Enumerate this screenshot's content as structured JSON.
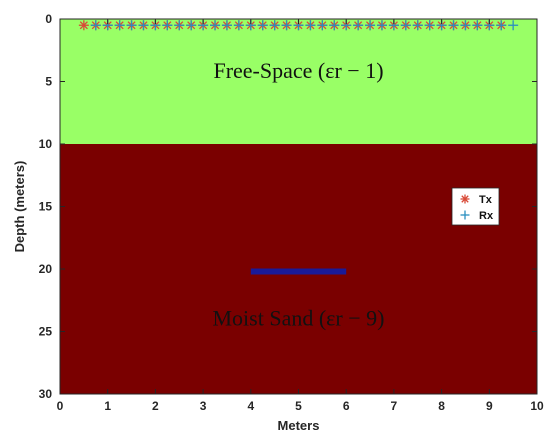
{
  "chart_data": {
    "type": "scatter",
    "xlabel": "Meters",
    "ylabel": "Depth (meters)",
    "xlim": [
      0,
      10
    ],
    "ylim": [
      0,
      30
    ],
    "y_axis_inverted": true,
    "xticks": [
      0,
      1,
      2,
      3,
      4,
      5,
      6,
      7,
      8,
      9,
      10
    ],
    "yticks": [
      0,
      5,
      10,
      15,
      20,
      25,
      30
    ],
    "grid": false,
    "legend_position": "right",
    "regions": [
      {
        "label": "Free-Space (εr − 1)",
        "depth_from": 0,
        "depth_to": 10,
        "color": "#99ff66"
      },
      {
        "label": "Moist Sand (εr − 9)",
        "depth_from": 10,
        "depth_to": 30,
        "color": "#7a0000"
      }
    ],
    "target": {
      "x_from": 4,
      "x_to": 6,
      "depth": 20.2,
      "color": "#1a1a99"
    },
    "series": [
      {
        "name": "Tx",
        "marker": "*",
        "color": "#d94a38",
        "points": [
          [
            0.5,
            0.5
          ],
          [
            0.75,
            0.5
          ],
          [
            1.0,
            0.5
          ],
          [
            1.25,
            0.5
          ],
          [
            1.5,
            0.5
          ],
          [
            1.75,
            0.5
          ],
          [
            2.0,
            0.5
          ],
          [
            2.25,
            0.5
          ],
          [
            2.5,
            0.5
          ],
          [
            2.75,
            0.5
          ],
          [
            3.0,
            0.5
          ],
          [
            3.25,
            0.5
          ],
          [
            3.5,
            0.5
          ],
          [
            3.75,
            0.5
          ],
          [
            4.0,
            0.5
          ],
          [
            4.25,
            0.5
          ],
          [
            4.5,
            0.5
          ],
          [
            4.75,
            0.5
          ],
          [
            5.0,
            0.5
          ],
          [
            5.25,
            0.5
          ],
          [
            5.5,
            0.5
          ],
          [
            5.75,
            0.5
          ],
          [
            6.0,
            0.5
          ],
          [
            6.25,
            0.5
          ],
          [
            6.5,
            0.5
          ],
          [
            6.75,
            0.5
          ],
          [
            7.0,
            0.5
          ],
          [
            7.25,
            0.5
          ],
          [
            7.5,
            0.5
          ],
          [
            7.75,
            0.5
          ],
          [
            8.0,
            0.5
          ],
          [
            8.25,
            0.5
          ],
          [
            8.5,
            0.5
          ],
          [
            8.75,
            0.5
          ],
          [
            9.0,
            0.5
          ],
          [
            9.25,
            0.5
          ]
        ]
      },
      {
        "name": "Rx",
        "marker": "+",
        "color": "#2a8fbf",
        "points": [
          [
            0.75,
            0.5
          ],
          [
            1.0,
            0.5
          ],
          [
            1.25,
            0.5
          ],
          [
            1.5,
            0.5
          ],
          [
            1.75,
            0.5
          ],
          [
            2.0,
            0.5
          ],
          [
            2.25,
            0.5
          ],
          [
            2.5,
            0.5
          ],
          [
            2.75,
            0.5
          ],
          [
            3.0,
            0.5
          ],
          [
            3.25,
            0.5
          ],
          [
            3.5,
            0.5
          ],
          [
            3.75,
            0.5
          ],
          [
            4.0,
            0.5
          ],
          [
            4.25,
            0.5
          ],
          [
            4.5,
            0.5
          ],
          [
            4.75,
            0.5
          ],
          [
            5.0,
            0.5
          ],
          [
            5.25,
            0.5
          ],
          [
            5.5,
            0.5
          ],
          [
            5.75,
            0.5
          ],
          [
            6.0,
            0.5
          ],
          [
            6.25,
            0.5
          ],
          [
            6.5,
            0.5
          ],
          [
            6.75,
            0.5
          ],
          [
            7.0,
            0.5
          ],
          [
            7.25,
            0.5
          ],
          [
            7.5,
            0.5
          ],
          [
            7.75,
            0.5
          ],
          [
            8.0,
            0.5
          ],
          [
            8.25,
            0.5
          ],
          [
            8.5,
            0.5
          ],
          [
            8.75,
            0.5
          ],
          [
            9.0,
            0.5
          ],
          [
            9.25,
            0.5
          ],
          [
            9.5,
            0.5
          ]
        ]
      }
    ]
  }
}
